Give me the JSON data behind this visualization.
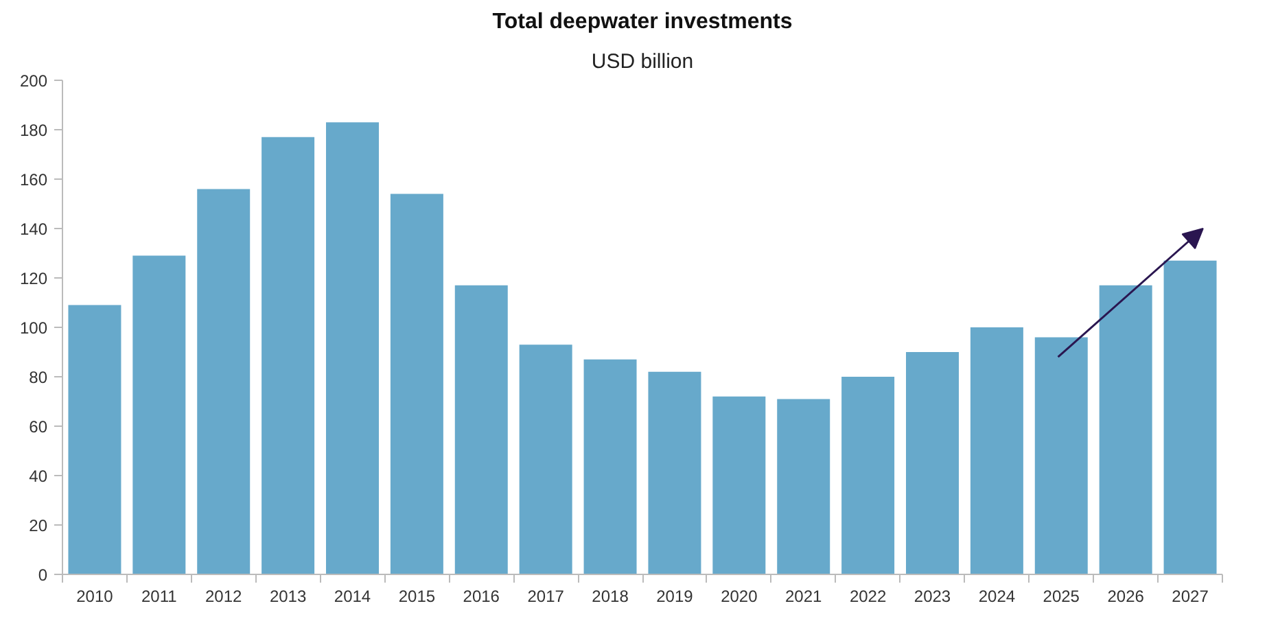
{
  "chart_data": {
    "type": "bar",
    "title": "Total deepwater investments",
    "subtitle": "USD billion",
    "categories": [
      "2010",
      "2011",
      "2012",
      "2013",
      "2014",
      "2015",
      "2016",
      "2017",
      "2018",
      "2019",
      "2020",
      "2021",
      "2022",
      "2023",
      "2024",
      "2025",
      "2026",
      "2027"
    ],
    "values": [
      109,
      129,
      156,
      177,
      183,
      154,
      117,
      93,
      87,
      82,
      72,
      71,
      80,
      90,
      100,
      96,
      117,
      127
    ],
    "color": "#67a9cb",
    "ylim": [
      0,
      200
    ],
    "yticks": [
      0,
      20,
      40,
      60,
      80,
      100,
      120,
      140,
      160,
      180,
      200
    ],
    "grid": false
  }
}
